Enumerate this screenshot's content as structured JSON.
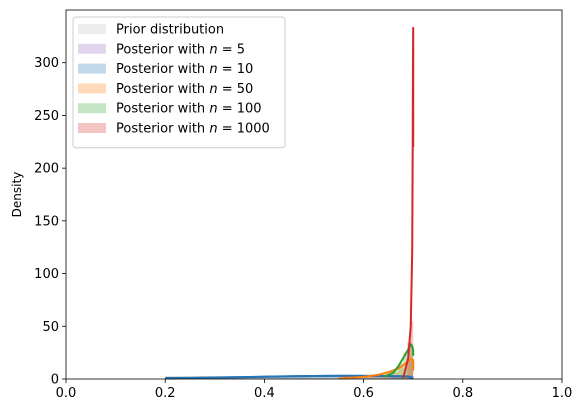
{
  "chart_data": {
    "type": "area",
    "title": "",
    "xlabel": "",
    "ylabel": "Density",
    "xlim": [
      0.0,
      1.0
    ],
    "ylim": [
      0,
      350
    ],
    "xticks": [
      0.0,
      0.2,
      0.4,
      0.6,
      0.8,
      1.0
    ],
    "xtick_labels": [
      "0.0",
      "0.2",
      "0.4",
      "0.6",
      "0.8",
      "1.0"
    ],
    "yticks": [
      0,
      50,
      100,
      150,
      200,
      250,
      300
    ],
    "ytick_labels": [
      "0",
      "50",
      "100",
      "150",
      "200",
      "250",
      "300"
    ],
    "grid": false,
    "legend_position": "top-left",
    "series": [
      {
        "name": "Prior distribution",
        "legend_prefix": "Prior distribution",
        "legend_var": "",
        "legend_value": "",
        "color": "#bdbdbd",
        "hist": [
          {
            "x0": 0.2,
            "x1": 0.7,
            "h": 2.0
          }
        ],
        "curve_x": [
          0.2,
          0.7
        ],
        "curve_y": [
          2.0,
          2.0
        ]
      },
      {
        "name": "Posterior with n = 5",
        "legend_prefix": "Posterior with ",
        "legend_var": "n",
        "legend_value": " = 5",
        "color": "#9467bd",
        "hist": [],
        "curve_x": [
          0.2,
          0.3,
          0.4,
          0.5,
          0.55,
          0.6,
          0.65,
          0.7
        ],
        "curve_y": [
          0.6,
          1.2,
          2.0,
          2.8,
          3.0,
          2.9,
          2.5,
          2.0
        ]
      },
      {
        "name": "Posterior with n = 10",
        "legend_prefix": "Posterior with ",
        "legend_var": "n",
        "legend_value": " = 10",
        "color": "#1f77b4",
        "hist": [
          {
            "x0": 0.2,
            "x1": 0.3,
            "h": 1.0
          },
          {
            "x0": 0.3,
            "x1": 0.4,
            "h": 1.5
          },
          {
            "x0": 0.4,
            "x1": 0.5,
            "h": 2.2
          },
          {
            "x0": 0.5,
            "x1": 0.6,
            "h": 2.8
          },
          {
            "x0": 0.6,
            "x1": 0.7,
            "h": 3.0
          }
        ],
        "curve_x": [
          0.2,
          0.25,
          0.3,
          0.35,
          0.4,
          0.45,
          0.5,
          0.55,
          0.6,
          0.65,
          0.69,
          0.7
        ],
        "curve_y": [
          0.8,
          1.1,
          1.4,
          1.8,
          2.2,
          2.6,
          2.9,
          3.1,
          3.1,
          2.9,
          2.5,
          0.5
        ]
      },
      {
        "name": "Posterior with n = 50",
        "legend_prefix": "Posterior with ",
        "legend_var": "n",
        "legend_value": " = 50",
        "color": "#ff7f0e",
        "hist": [
          {
            "x0": 0.6,
            "x1": 0.64,
            "h": 3.0
          },
          {
            "x0": 0.64,
            "x1": 0.67,
            "h": 6.0
          },
          {
            "x0": 0.67,
            "x1": 0.69,
            "h": 11.0
          },
          {
            "x0": 0.69,
            "x1": 0.7,
            "h": 17.0
          }
        ],
        "curve_x": [
          0.55,
          0.6,
          0.63,
          0.65,
          0.67,
          0.68,
          0.69,
          0.695,
          0.7,
          0.7
        ],
        "curve_y": [
          0.5,
          2.0,
          4.0,
          6.5,
          10.0,
          13.0,
          17.0,
          19.0,
          18.0,
          8.0
        ]
      },
      {
        "name": "Posterior with n = 100",
        "legend_prefix": "Posterior with ",
        "legend_var": "n",
        "legend_value": " = 100",
        "color": "#2ca02c",
        "hist": [
          {
            "x0": 0.655,
            "x1": 0.67,
            "h": 8.0
          },
          {
            "x0": 0.67,
            "x1": 0.68,
            "h": 15.0
          },
          {
            "x0": 0.68,
            "x1": 0.69,
            "h": 25.0
          },
          {
            "x0": 0.69,
            "x1": 0.7,
            "h": 33.0
          }
        ],
        "curve_x": [
          0.64,
          0.66,
          0.67,
          0.68,
          0.69,
          0.695,
          0.698,
          0.7,
          0.7
        ],
        "curve_y": [
          2.0,
          6.0,
          12.0,
          20.0,
          28.0,
          33.0,
          31.0,
          27.0,
          22.0
        ]
      },
      {
        "name": "Posterior with n = 1000",
        "legend_prefix": "Posterior with ",
        "legend_var": "n",
        "legend_value": " = 1000",
        "color": "#d62728",
        "hist": [
          {
            "x0": 0.688,
            "x1": 0.695,
            "h": 35.0
          },
          {
            "x0": 0.695,
            "x1": 0.7,
            "h": 55.0
          }
        ],
        "curve_x": [
          0.68,
          0.69,
          0.695,
          0.698,
          0.699,
          0.6995,
          0.7,
          0.7
        ],
        "curve_y": [
          1.0,
          20.0,
          50.0,
          120.0,
          220.0,
          300.0,
          333.0,
          220.0
        ]
      }
    ]
  }
}
